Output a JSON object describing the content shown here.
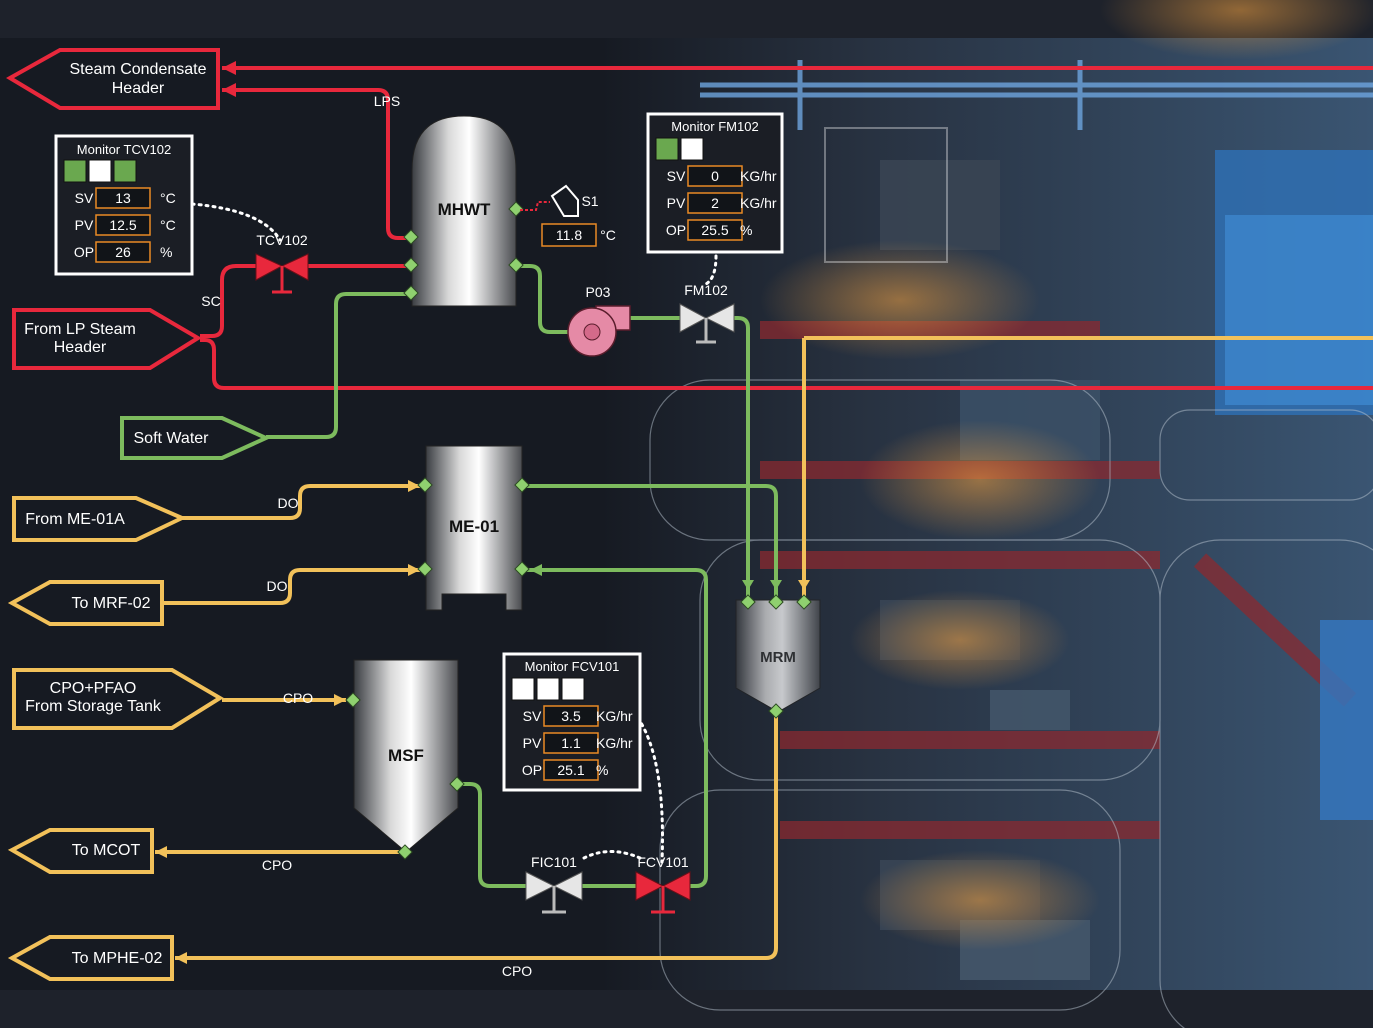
{
  "streams": {
    "steam_condensate": {
      "line1": "Steam Condensate",
      "line2": "Header"
    },
    "lp_steam": {
      "line1": "From LP Steam",
      "line2": "Header"
    },
    "soft_water": "Soft Water",
    "from_me01a": "From ME-01A",
    "to_mrf02": "To MRF-02",
    "cpo_pfao": {
      "line1": "CPO+PFAO",
      "line2": "From Storage Tank"
    },
    "to_mcot": "To MCOT",
    "to_mphe02": "To MPHE-02"
  },
  "line_labels": {
    "lps": "LPS",
    "sc": "SC",
    "do1": "DO",
    "do2": "DO",
    "cpo1": "CPO",
    "cpo2": "CPO",
    "cpo3": "CPO"
  },
  "equipment": {
    "mhwt": "MHWT",
    "me01": "ME-01",
    "msf": "MSF",
    "mrm": "MRM",
    "p03": "P03",
    "tcv102": "TCV102",
    "fm102": "FM102",
    "fic101": "FIC101",
    "fcv101": "FCV101",
    "s1": "S1"
  },
  "sensor_s1": {
    "value": "11.8",
    "unit": "°C"
  },
  "monitors": {
    "tcv102": {
      "title": "Monitor TCV102",
      "lamps": [
        "#6aa84f",
        "#ffffff",
        "#6aa84f"
      ],
      "rows": [
        {
          "label": "SV",
          "value": "13",
          "unit": "°C"
        },
        {
          "label": "PV",
          "value": "12.5",
          "unit": "°C"
        },
        {
          "label": "OP",
          "value": "26",
          "unit": "%"
        }
      ]
    },
    "fm102": {
      "title": "Monitor FM102",
      "lamps": [
        "#6aa84f",
        "#ffffff"
      ],
      "rows": [
        {
          "label": "SV",
          "value": "0",
          "unit": "KG/hr"
        },
        {
          "label": "PV",
          "value": "2",
          "unit": "KG/hr"
        },
        {
          "label": "OP",
          "value": "25.5",
          "unit": "%"
        }
      ]
    },
    "fcv101": {
      "title": "Monitor FCV101",
      "lamps": [
        "#ffffff",
        "#ffffff",
        "#ffffff"
      ],
      "rows": [
        {
          "label": "SV",
          "value": "3.5",
          "unit": "KG/hr"
        },
        {
          "label": "PV",
          "value": "1.1",
          "unit": "KG/hr"
        },
        {
          "label": "OP",
          "value": "25.1",
          "unit": "%"
        }
      ]
    }
  },
  "colors": {
    "steam": "#e8283c",
    "oil": "#f2c15a",
    "water": "#7dbb5e",
    "background": "#161a22"
  }
}
